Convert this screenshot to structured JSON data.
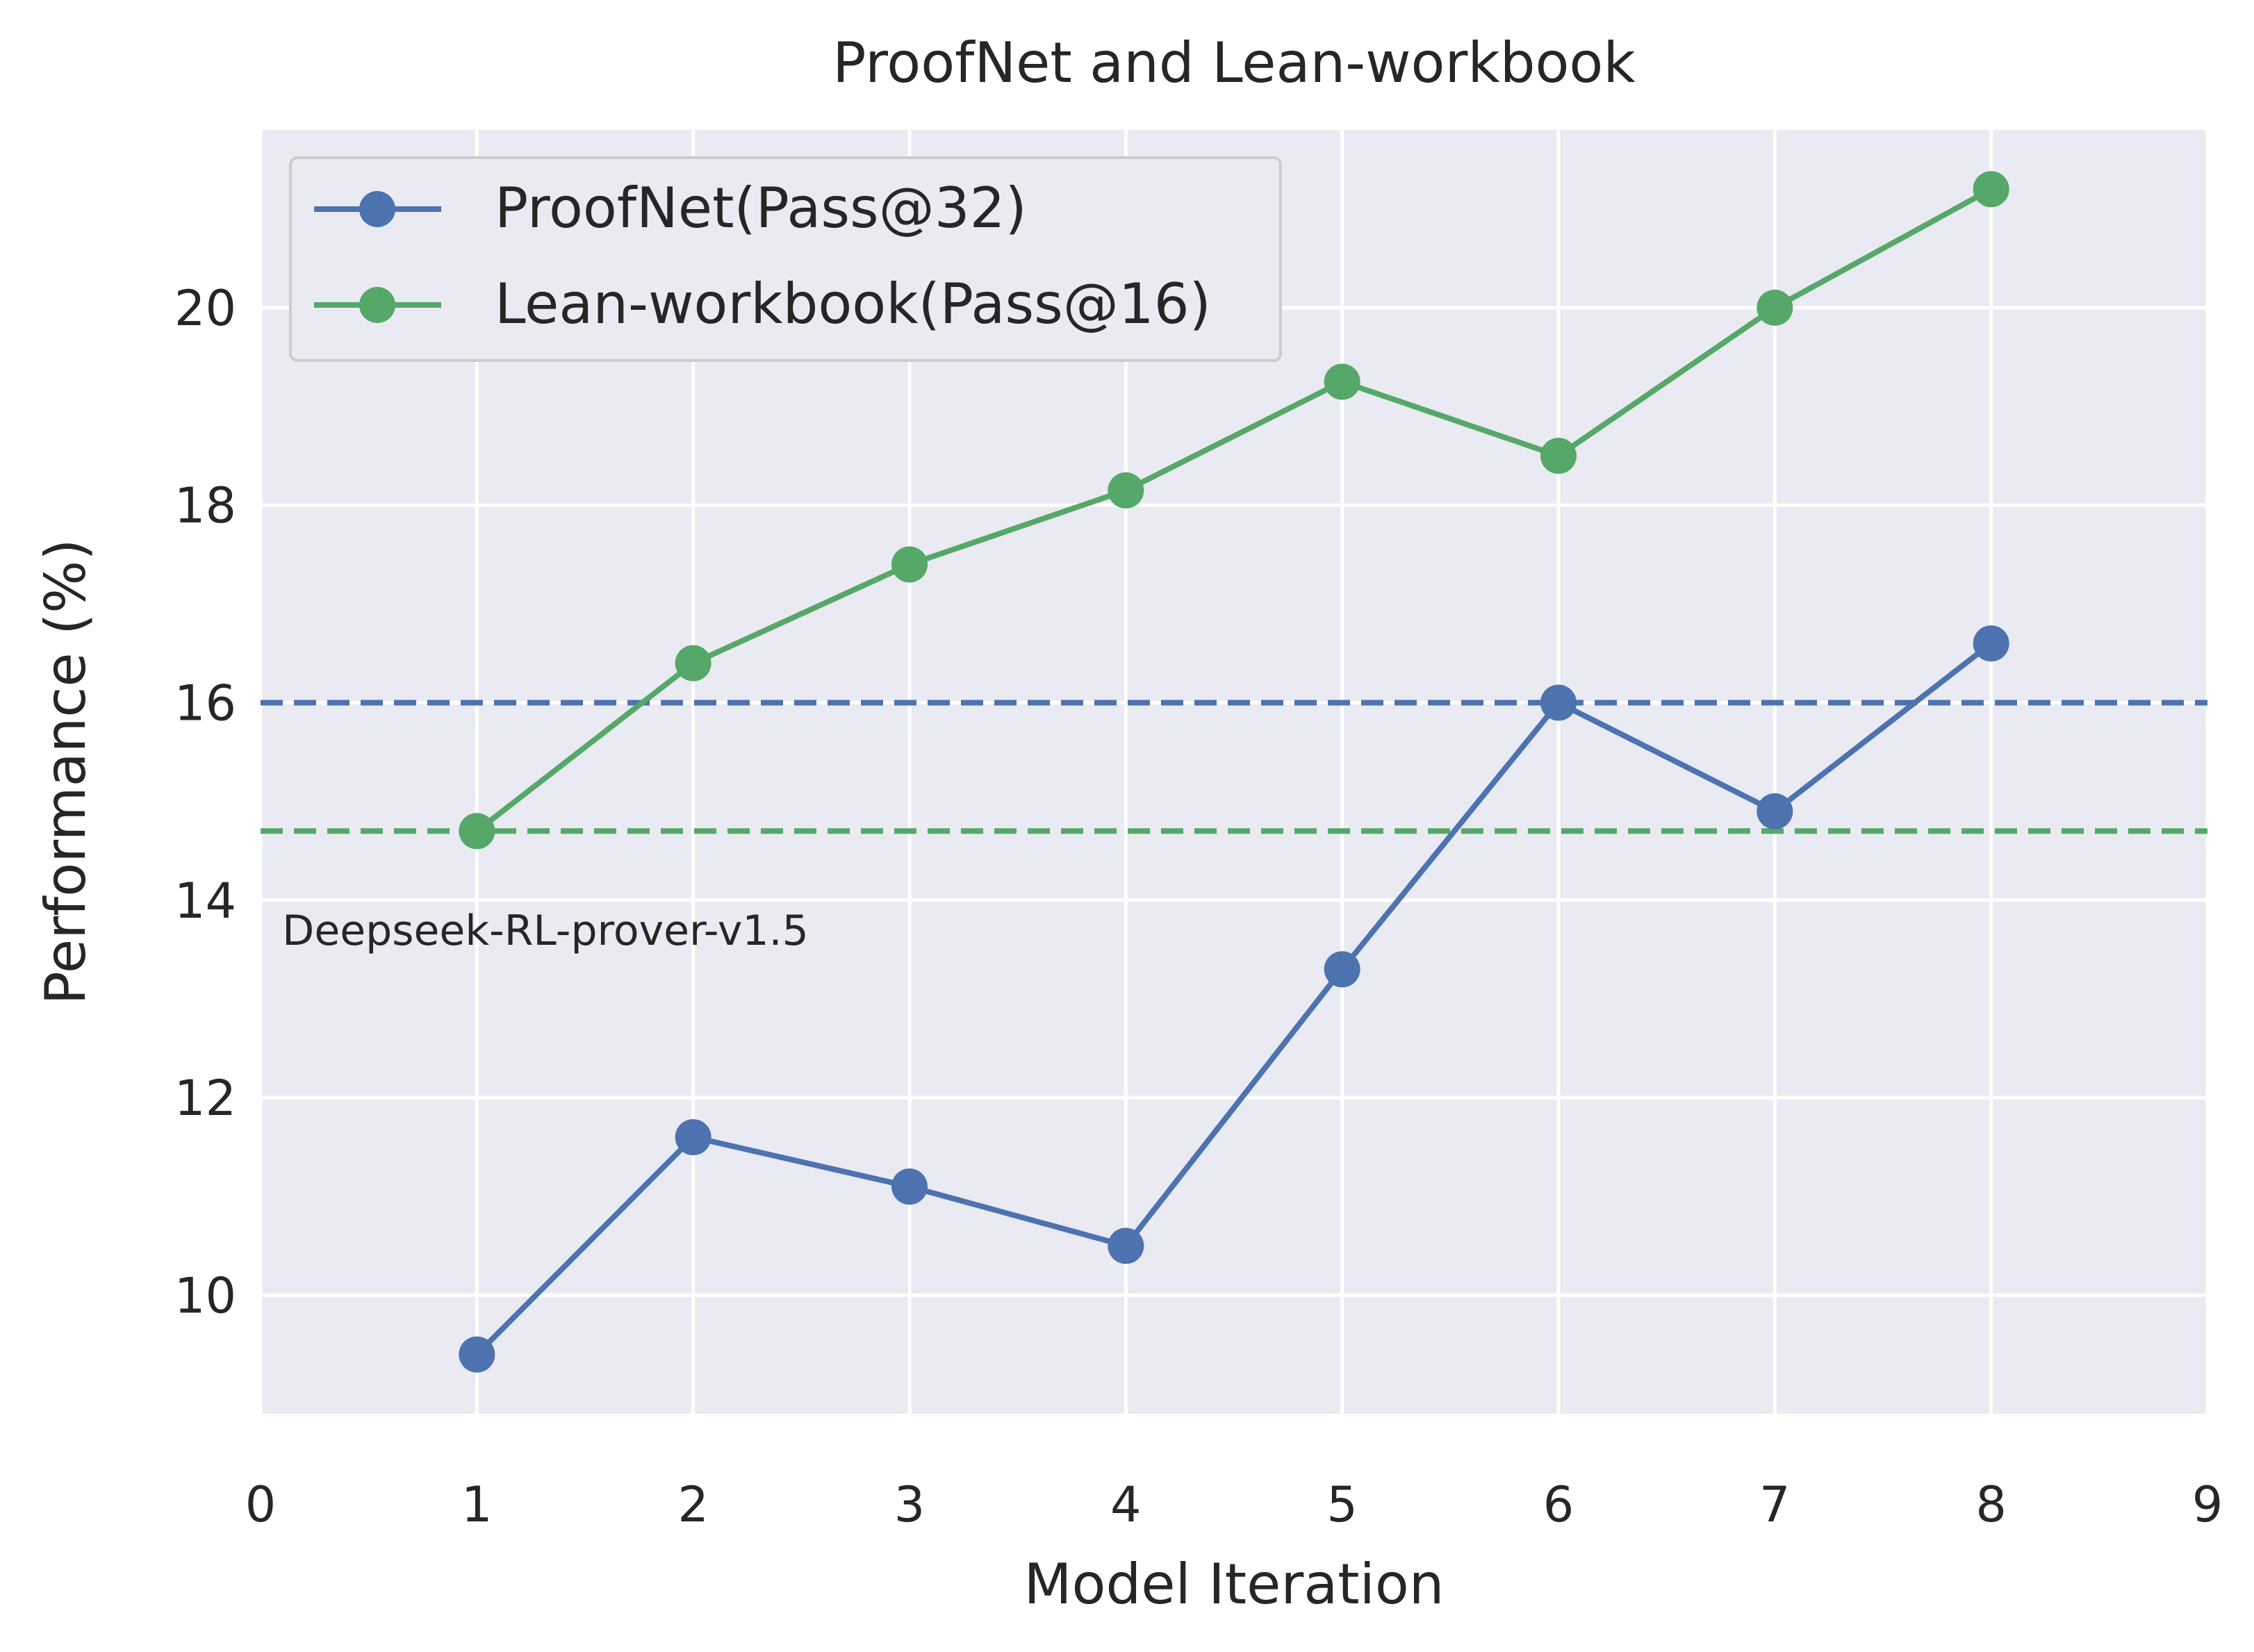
{
  "chart_data": {
    "type": "line",
    "title": "ProofNet and Lean-workbook",
    "xlabel": "Model Iteration",
    "ylabel": "Performance (%)",
    "xlim": [
      0,
      9
    ],
    "ylim": [
      8.8,
      21.8
    ],
    "xticks": [
      0,
      1,
      2,
      3,
      4,
      5,
      6,
      7,
      8,
      9
    ],
    "yticks": [
      10,
      12,
      14,
      16,
      18,
      20
    ],
    "grid": true,
    "legend_position": "upper-left",
    "x": [
      1,
      2,
      3,
      4,
      5,
      6,
      7,
      8
    ],
    "series": [
      {
        "name": "ProofNet(Pass@32)",
        "color": "#4c72b0",
        "marker": "circle",
        "values": [
          9.4,
          11.6,
          11.1,
          10.5,
          13.3,
          16.0,
          14.9,
          16.6
        ]
      },
      {
        "name": "Lean-workbook(Pass@16)",
        "color": "#55a868",
        "marker": "circle",
        "values": [
          14.7,
          16.4,
          17.4,
          18.15,
          19.25,
          18.5,
          20.0,
          21.2
        ]
      }
    ],
    "reference_lines": [
      {
        "y": 16.0,
        "color": "#4c72b0",
        "style": "dashed"
      },
      {
        "y": 14.7,
        "color": "#55a868",
        "style": "dashed"
      }
    ],
    "annotation": {
      "text": "Deepseek-RL-prover-v1.5",
      "x": 0.1,
      "y": 13.55
    },
    "colors": {
      "plot_background": "#eaeaf2",
      "grid": "#ffffff",
      "text": "#262626"
    }
  }
}
